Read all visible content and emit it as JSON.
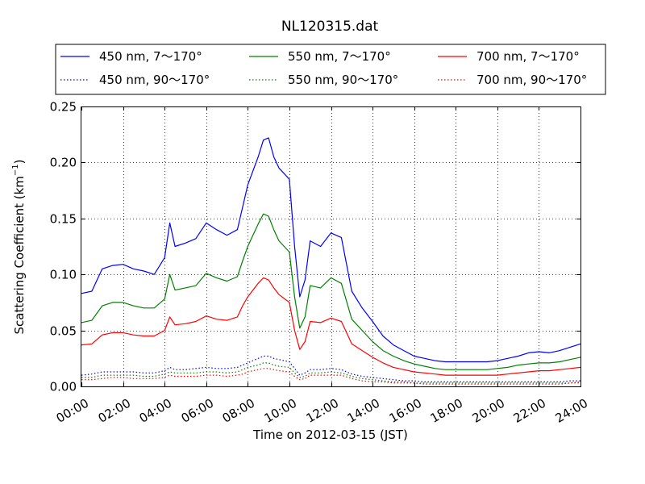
{
  "chart_data": {
    "type": "line",
    "title": "NL120315.dat",
    "xlabel": "Time on 2012-03-15 (JST)",
    "ylabel": "Scattering Coefficient (km",
    "ylabel_exp": "−1",
    "ylabel_close": ")",
    "xlim": [
      0,
      24
    ],
    "ylim": [
      0,
      0.25
    ],
    "grid": true,
    "legend_placement": "top, above plot, 3 columns",
    "x_tick_labels": [
      "00:00",
      "02:00",
      "04:00",
      "06:00",
      "08:00",
      "10:00",
      "12:00",
      "14:00",
      "16:00",
      "18:00",
      "20:00",
      "22:00",
      "24:00"
    ],
    "y_tick_labels": [
      "0.00",
      "0.05",
      "0.10",
      "0.15",
      "0.20",
      "0.25"
    ],
    "x_hours": [
      0,
      0.5,
      1,
      1.5,
      2,
      2.5,
      3,
      3.5,
      4,
      4.25,
      4.5,
      5,
      5.5,
      6,
      6.5,
      7,
      7.5,
      7.75,
      8,
      8.5,
      8.75,
      9,
      9.25,
      9.5,
      10,
      10.25,
      10.5,
      10.75,
      11,
      11.5,
      12,
      12.5,
      13,
      13.5,
      14,
      14.5,
      15,
      15.5,
      16,
      16.5,
      17,
      17.5,
      18,
      18.5,
      19,
      19.5,
      20,
      20.5,
      21,
      21.5,
      22,
      22.5,
      23,
      23.5,
      24
    ],
    "series": [
      {
        "name": "450 nm, 7～170°",
        "color": "#0000ff",
        "style": "solid",
        "values": [
          0.083,
          0.085,
          0.105,
          0.108,
          0.109,
          0.105,
          0.103,
          0.1,
          0.115,
          0.146,
          0.125,
          0.128,
          0.132,
          0.146,
          0.14,
          0.135,
          0.14,
          0.16,
          0.18,
          0.205,
          0.22,
          0.222,
          0.205,
          0.195,
          0.185,
          0.125,
          0.08,
          0.095,
          0.13,
          0.125,
          0.137,
          0.133,
          0.085,
          0.07,
          0.058,
          0.045,
          0.037,
          0.032,
          0.027,
          0.025,
          0.023,
          0.022,
          0.022,
          0.022,
          0.022,
          0.022,
          0.023,
          0.025,
          0.027,
          0.03,
          0.031,
          0.03,
          0.032,
          0.035,
          0.038
        ]
      },
      {
        "name": "450 nm, 90～170°",
        "color": "#0000ff",
        "style": "dotted",
        "values": [
          0.01,
          0.011,
          0.013,
          0.013,
          0.013,
          0.013,
          0.012,
          0.012,
          0.014,
          0.017,
          0.015,
          0.015,
          0.016,
          0.017,
          0.016,
          0.016,
          0.017,
          0.019,
          0.021,
          0.025,
          0.027,
          0.027,
          0.025,
          0.024,
          0.022,
          0.016,
          0.01,
          0.012,
          0.015,
          0.015,
          0.016,
          0.015,
          0.011,
          0.009,
          0.008,
          0.007,
          0.006,
          0.005,
          0.005,
          0.004,
          0.004,
          0.004,
          0.004,
          0.004,
          0.004,
          0.004,
          0.004,
          0.004,
          0.004,
          0.004,
          0.004,
          0.004,
          0.004,
          0.005,
          0.005
        ]
      },
      {
        "name": "550 nm, 7～170°",
        "color": "#008000",
        "style": "solid",
        "values": [
          0.057,
          0.059,
          0.072,
          0.075,
          0.075,
          0.072,
          0.07,
          0.07,
          0.078,
          0.1,
          0.086,
          0.088,
          0.09,
          0.101,
          0.097,
          0.094,
          0.098,
          0.112,
          0.125,
          0.145,
          0.154,
          0.152,
          0.14,
          0.13,
          0.12,
          0.08,
          0.052,
          0.062,
          0.09,
          0.088,
          0.097,
          0.092,
          0.06,
          0.05,
          0.04,
          0.032,
          0.027,
          0.023,
          0.02,
          0.018,
          0.016,
          0.015,
          0.015,
          0.015,
          0.015,
          0.015,
          0.016,
          0.017,
          0.019,
          0.02,
          0.021,
          0.021,
          0.022,
          0.024,
          0.026
        ]
      },
      {
        "name": "550 nm, 90～170°",
        "color": "#008000",
        "style": "dotted",
        "values": [
          0.008,
          0.008,
          0.01,
          0.01,
          0.01,
          0.01,
          0.009,
          0.009,
          0.011,
          0.013,
          0.012,
          0.012,
          0.012,
          0.013,
          0.013,
          0.012,
          0.013,
          0.015,
          0.017,
          0.019,
          0.021,
          0.021,
          0.019,
          0.018,
          0.017,
          0.012,
          0.008,
          0.009,
          0.012,
          0.012,
          0.013,
          0.012,
          0.009,
          0.007,
          0.006,
          0.005,
          0.004,
          0.004,
          0.003,
          0.003,
          0.003,
          0.003,
          0.003,
          0.003,
          0.003,
          0.003,
          0.003,
          0.003,
          0.003,
          0.003,
          0.003,
          0.003,
          0.003,
          0.003,
          0.004
        ]
      },
      {
        "name": "700 nm, 7～170°",
        "color": "#ff0000",
        "style": "solid",
        "values": [
          0.037,
          0.038,
          0.046,
          0.048,
          0.048,
          0.046,
          0.045,
          0.045,
          0.05,
          0.062,
          0.055,
          0.056,
          0.058,
          0.063,
          0.06,
          0.059,
          0.062,
          0.072,
          0.08,
          0.092,
          0.097,
          0.095,
          0.088,
          0.082,
          0.075,
          0.05,
          0.033,
          0.04,
          0.058,
          0.057,
          0.061,
          0.058,
          0.038,
          0.032,
          0.026,
          0.021,
          0.017,
          0.015,
          0.013,
          0.012,
          0.011,
          0.01,
          0.01,
          0.01,
          0.01,
          0.01,
          0.01,
          0.011,
          0.012,
          0.013,
          0.014,
          0.014,
          0.015,
          0.016,
          0.017
        ]
      },
      {
        "name": "700 nm, 90～170°",
        "color": "#ff0000",
        "style": "dotted",
        "values": [
          0.006,
          0.006,
          0.007,
          0.008,
          0.008,
          0.007,
          0.007,
          0.007,
          0.008,
          0.01,
          0.009,
          0.009,
          0.009,
          0.01,
          0.01,
          0.009,
          0.01,
          0.011,
          0.013,
          0.015,
          0.016,
          0.016,
          0.015,
          0.014,
          0.013,
          0.009,
          0.006,
          0.007,
          0.01,
          0.01,
          0.01,
          0.01,
          0.007,
          0.005,
          0.004,
          0.004,
          0.003,
          0.003,
          0.003,
          0.002,
          0.002,
          0.002,
          0.002,
          0.002,
          0.002,
          0.002,
          0.002,
          0.002,
          0.002,
          0.002,
          0.002,
          0.002,
          0.002,
          0.003,
          0.003
        ]
      }
    ]
  }
}
